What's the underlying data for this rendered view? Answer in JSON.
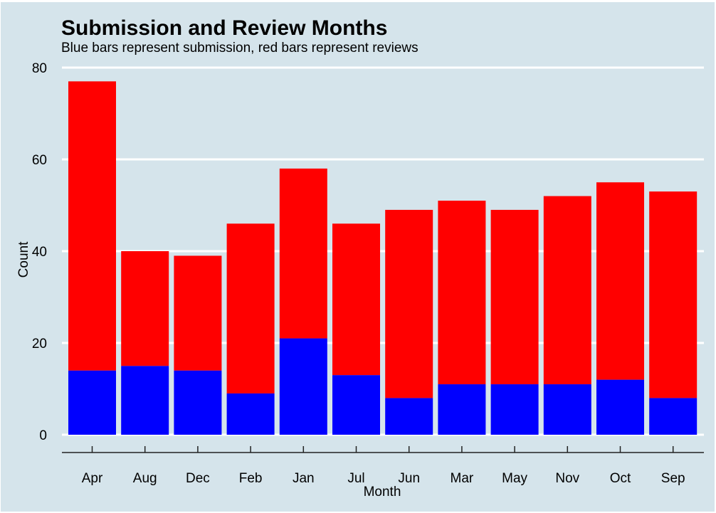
{
  "chart_data": {
    "type": "bar",
    "stacked": true,
    "title": "Submission and Review Months",
    "subtitle": "Blue bars represent submission, red bars represent reviews",
    "xlabel": "Month",
    "ylabel": "Count",
    "categories": [
      "Apr",
      "Aug",
      "Dec",
      "Feb",
      "Jan",
      "Jul",
      "Jun",
      "Mar",
      "May",
      "Nov",
      "Oct",
      "Sep"
    ],
    "series": [
      {
        "name": "submission",
        "color": "#0000ff",
        "values": [
          14,
          15,
          14,
          9,
          21,
          13,
          8,
          11,
          11,
          11,
          12,
          8
        ]
      },
      {
        "name": "reviews",
        "color": "#ff0000",
        "values": [
          63,
          25,
          25,
          37,
          37,
          33,
          41,
          40,
          38,
          41,
          43,
          45
        ]
      }
    ],
    "totals": [
      77,
      40,
      39,
      46,
      58,
      46,
      49,
      51,
      49,
      52,
      55,
      53
    ],
    "ylim": [
      0,
      80
    ],
    "yticks": [
      0,
      20,
      40,
      60,
      80
    ],
    "grid": true,
    "legend": "none",
    "background": "#d5e4eb"
  }
}
